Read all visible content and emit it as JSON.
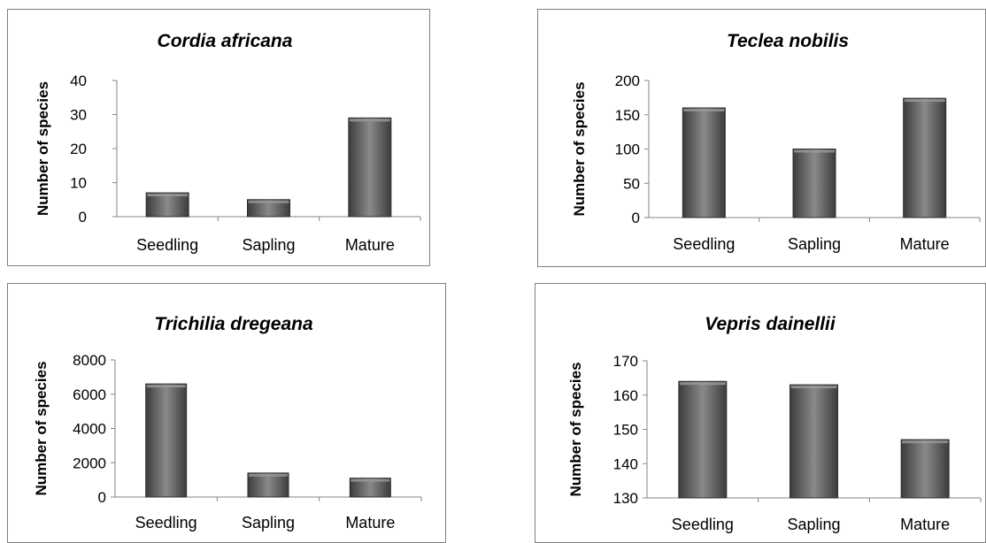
{
  "chart_data": [
    {
      "type": "bar",
      "title": "Cordia africana",
      "ylabel": "Number of species",
      "categories": [
        "Seedling",
        "Sapling",
        "Mature"
      ],
      "values": [
        7,
        5,
        29
      ],
      "ylim": [
        0,
        40
      ],
      "yticks": [
        "0",
        "10",
        "20",
        "30",
        "40"
      ],
      "grid": false,
      "legend": "none"
    },
    {
      "type": "bar",
      "title": "Teclea nobilis",
      "ylabel": "Number of species",
      "categories": [
        "Seedling",
        "Sapling",
        "Mature"
      ],
      "values": [
        160,
        100,
        174
      ],
      "ylim": [
        0,
        200
      ],
      "yticks": [
        "0",
        "50",
        "100",
        "150",
        "200"
      ],
      "grid": false,
      "legend": "none"
    },
    {
      "type": "bar",
      "title": "Trichilia dregeana",
      "ylabel": "Number of species",
      "categories": [
        "Seedling",
        "Sapling",
        "Mature"
      ],
      "values": [
        6600,
        1400,
        1100
      ],
      "ylim": [
        0,
        8000
      ],
      "yticks": [
        "0",
        "2000",
        "4000",
        "6000",
        "8000"
      ],
      "grid": false,
      "legend": "none"
    },
    {
      "type": "bar",
      "title": "Vepris dainellii",
      "ylabel": "Number of species",
      "categories": [
        "Seedling",
        "Sapling",
        "Mature"
      ],
      "values": [
        164,
        163,
        147
      ],
      "ylim": [
        130,
        170
      ],
      "yticks": [
        "130",
        "140",
        "150",
        "160",
        "170"
      ],
      "grid": false,
      "legend": "none"
    }
  ],
  "colors": {
    "bar_dark": "#3c3c3c",
    "bar_light": "#8a8a8a",
    "axis": "#868686",
    "border": "#7f7f7f"
  }
}
